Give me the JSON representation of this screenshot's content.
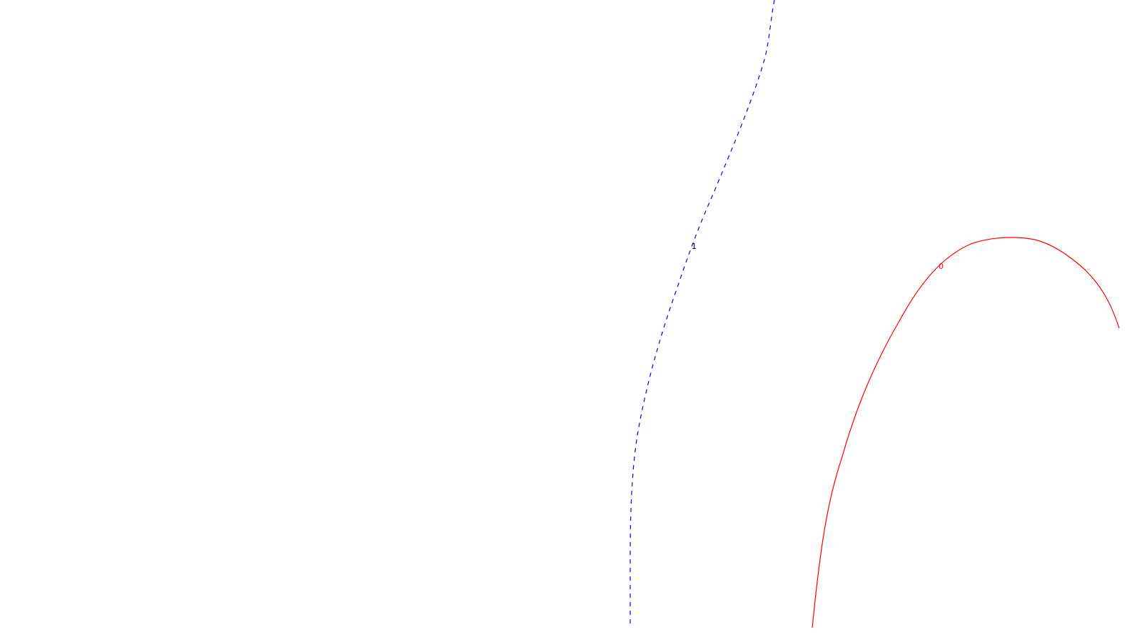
{
  "chart_data": {
    "type": "contour",
    "title": "",
    "xlabel": "",
    "ylabel": "",
    "grid": false,
    "contours": [
      {
        "level_label": "1",
        "color": "#0000ff",
        "linestyle": "dashed"
      },
      {
        "level_label": "0",
        "color": "#ff0000",
        "linestyle": "solid"
      }
    ]
  },
  "colors": {
    "background": "#ffffff",
    "label_ink": "#000000"
  }
}
